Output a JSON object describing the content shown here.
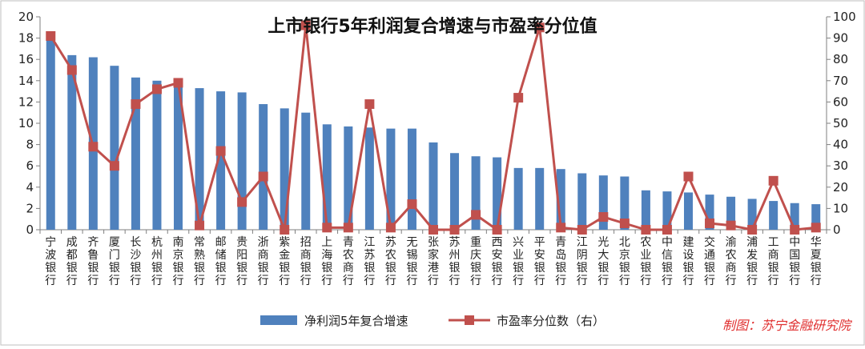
{
  "chart_data": {
    "type": "bar",
    "title": "上市银行5年利润复合增速与市盈率分位值",
    "categories": [
      "宁波银行",
      "成都银行",
      "齐鲁银行",
      "厦门银行",
      "长沙银行",
      "杭州银行",
      "南京银行",
      "常熟银行",
      "邮储银行",
      "贵阳银行",
      "浙商银行",
      "紫金银行",
      "招商银行",
      "上海银行",
      "青农商行",
      "江苏银行",
      "苏农银行",
      "无锡银行",
      "张家港行",
      "苏州银行",
      "重庆银行",
      "西安银行",
      "兴业银行",
      "平安银行",
      "青岛银行",
      "江阴银行",
      "光大银行",
      "北京银行",
      "农业银行",
      "中信银行",
      "建设银行",
      "交通银行",
      "渝农商行",
      "浦发银行",
      "工商银行",
      "中国银行",
      "华夏银行"
    ],
    "series": [
      {
        "name": "净利润5年复合增速",
        "type": "bar",
        "axis": "left",
        "color": "#4f81bd",
        "values": [
          18.3,
          16.4,
          16.2,
          15.4,
          14.3,
          14.0,
          13.9,
          13.3,
          13.0,
          12.9,
          11.8,
          11.4,
          11.0,
          9.9,
          9.7,
          9.6,
          9.5,
          9.5,
          8.2,
          7.2,
          6.9,
          6.8,
          5.8,
          5.8,
          5.7,
          5.3,
          5.1,
          5.0,
          3.7,
          3.6,
          3.5,
          3.3,
          3.1,
          2.9,
          2.7,
          2.5,
          2.4
        ]
      },
      {
        "name": "市盈率分位数（右）",
        "type": "line",
        "axis": "right",
        "color": "#c0504d",
        "values": [
          91,
          75,
          39,
          30,
          59,
          66,
          69,
          2,
          37,
          13,
          25,
          0,
          96,
          1,
          1,
          59,
          1,
          12,
          0,
          0,
          7,
          0,
          62,
          95,
          1,
          0,
          6,
          3,
          0,
          0,
          25,
          3,
          2,
          0,
          23,
          0,
          1
        ]
      }
    ],
    "y_left": {
      "min": 0,
      "max": 20,
      "ticks": [
        "0",
        "2",
        "4",
        "6",
        "8",
        "10",
        "12",
        "14",
        "16",
        "18",
        "20"
      ]
    },
    "y_right": {
      "min": 0,
      "max": 100,
      "ticks": [
        "0",
        "10",
        "20",
        "30",
        "40",
        "50",
        "60",
        "70",
        "80",
        "90",
        "100"
      ]
    },
    "grid": false,
    "legend_position": "bottom",
    "credit": "制图：苏宁金融研究院"
  }
}
